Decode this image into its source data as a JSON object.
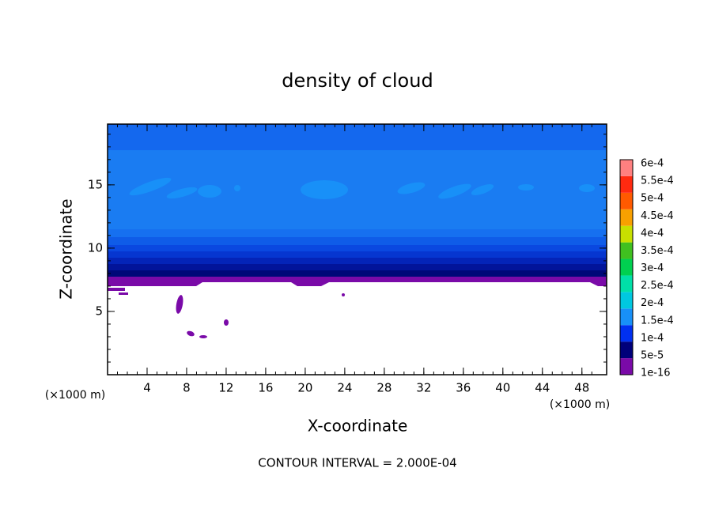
{
  "chart_data": {
    "type": "contour",
    "title": "density of cloud",
    "x_label": "X-coordinate",
    "y_label": "Z-coordinate",
    "y_unit_label": "(×1000 m)",
    "x_unit_label": "(×1000 m)",
    "footer": "CONTOUR INTERVAL = 2.000E-04",
    "xlim": [
      0,
      50.5
    ],
    "xticks": [
      4,
      8,
      12,
      16,
      20,
      24,
      28,
      32,
      36,
      40,
      44,
      48
    ],
    "ylim": [
      0,
      19.8
    ],
    "yticks": [
      5,
      10,
      15
    ],
    "colorbar": [
      {
        "value": 1e-16,
        "label": "1e-16",
        "color": "#7a0aa8"
      },
      {
        "value": 5e-05,
        "label": "5e-5",
        "color": "#00007a"
      },
      {
        "value": 0.0001,
        "label": "1e-4",
        "color": "#0030f0"
      },
      {
        "value": 0.00015,
        "label": "1.5e-4",
        "color": "#1890f8"
      },
      {
        "value": 0.0002,
        "label": "2e-4",
        "color": "#00c8e0"
      },
      {
        "value": 0.00025,
        "label": "2.5e-4",
        "color": "#00e0a8"
      },
      {
        "value": 0.0003,
        "label": "3e-4",
        "color": "#00d050"
      },
      {
        "value": 0.00035,
        "label": "3.5e-4",
        "color": "#40c020"
      },
      {
        "value": 0.0004,
        "label": "4e-4",
        "color": "#c8e000"
      },
      {
        "value": 0.00045,
        "label": "4.5e-4",
        "color": "#f8a000"
      },
      {
        "value": 0.0005,
        "label": "5e-4",
        "color": "#ff5a00"
      },
      {
        "value": 0.00055,
        "label": "5.5e-4",
        "color": "#ff2a10"
      },
      {
        "value": 0.0006,
        "label": "6e-4",
        "color": "#ff8080"
      }
    ]
  }
}
